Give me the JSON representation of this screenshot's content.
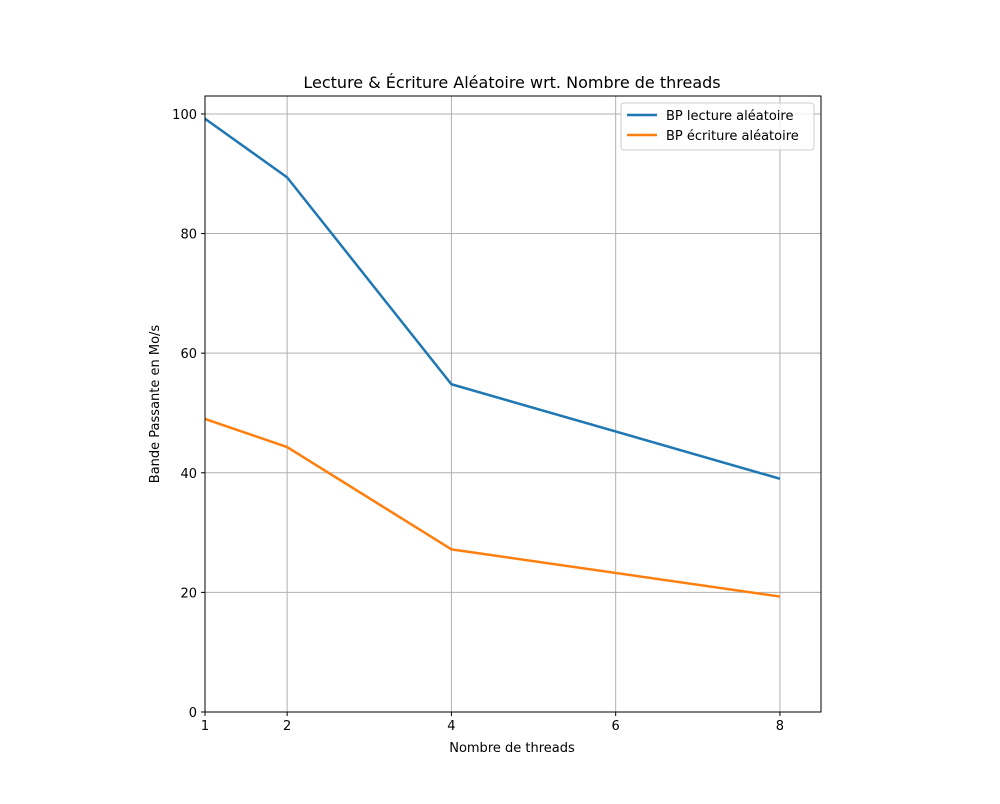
{
  "chart_data": {
    "type": "line",
    "title": "Lecture & Écriture Aléatoire wrt. Nombre de threads",
    "xlabel": "Nombre de threads",
    "ylabel": "Bande Passante en Mo/s",
    "x": [
      1,
      2,
      4,
      8
    ],
    "xticks": [
      1,
      2,
      4,
      6,
      8
    ],
    "yticks": [
      0,
      20,
      40,
      60,
      80,
      100
    ],
    "xlim": [
      1,
      8.5
    ],
    "ylim": [
      0,
      103
    ],
    "grid": true,
    "legend_position": "top-right",
    "series": [
      {
        "name": "BP lecture aléatoire",
        "color": "#1f77b4",
        "values": [
          99.2,
          89.4,
          54.8,
          39.0
        ]
      },
      {
        "name": "BP écriture aléatoire",
        "color": "#ff7f0e",
        "values": [
          49.0,
          44.3,
          27.2,
          19.3
        ]
      }
    ]
  }
}
